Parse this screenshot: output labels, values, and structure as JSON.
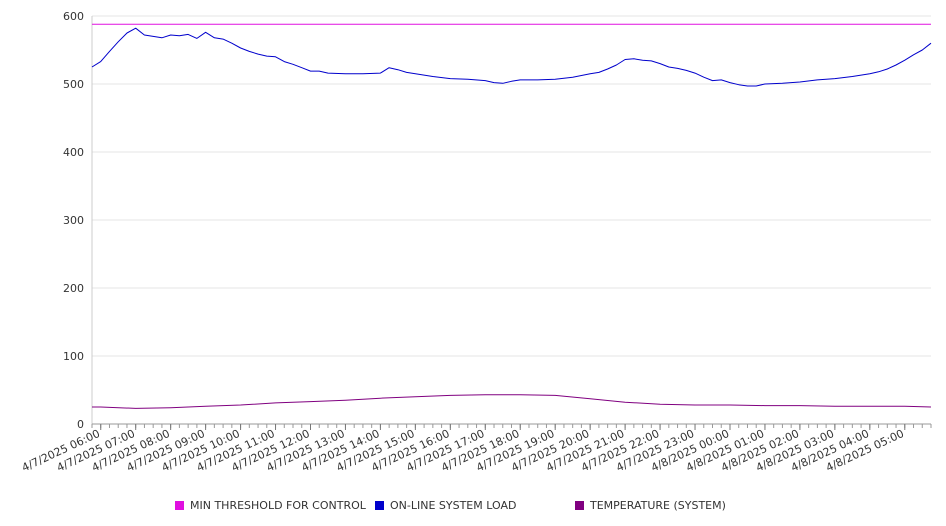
{
  "chart_data": {
    "type": "line",
    "title": "",
    "xlabel": "",
    "ylabel": "",
    "ylim": [
      0,
      600
    ],
    "yticks": [
      0,
      100,
      200,
      300,
      400,
      500,
      600
    ],
    "grid": true,
    "legend_position": "bottom",
    "x_tick_labels": [
      "4/7/2025 06:00",
      "4/7/2025 07:00",
      "4/7/2025 08:00",
      "4/7/2025 09:00",
      "4/7/2025 10:00",
      "4/7/2025 11:00",
      "4/7/2025 12:00",
      "4/7/2025 13:00",
      "4/7/2025 14:00",
      "4/7/2025 15:00",
      "4/7/2025 16:00",
      "4/7/2025 17:00",
      "4/7/2025 18:00",
      "4/7/2025 19:00",
      "4/7/2025 20:00",
      "4/7/2025 21:00",
      "4/7/2025 22:00",
      "4/7/2025 23:00",
      "4/8/2025 00:00",
      "4/8/2025 01:00",
      "4/8/2025 02:00",
      "4/8/2025 03:00",
      "4/8/2025 04:00",
      "4/8/2025 05:00"
    ],
    "x_range": [
      "4/7/2025 05:45",
      "4/8/2025 05:45"
    ],
    "series": [
      {
        "name": "MIN THRESHOLD FOR CONTROL",
        "color": "#e010e0",
        "points": [
          [
            "4/7/2025 05:45",
            588
          ],
          [
            "4/8/2025 05:45",
            588
          ]
        ]
      },
      {
        "name": "ON-LINE SYSTEM LOAD",
        "color": "#0000cc",
        "points": [
          [
            "4/7/2025 05:45",
            525
          ],
          [
            "4/7/2025 06:00",
            533
          ],
          [
            "4/7/2025 06:15",
            548
          ],
          [
            "4/7/2025 06:30",
            562
          ],
          [
            "4/7/2025 06:45",
            575
          ],
          [
            "4/7/2025 07:00",
            582
          ],
          [
            "4/7/2025 07:15",
            572
          ],
          [
            "4/7/2025 07:30",
            570
          ],
          [
            "4/7/2025 07:45",
            568
          ],
          [
            "4/7/2025 08:00",
            572
          ],
          [
            "4/7/2025 08:15",
            571
          ],
          [
            "4/7/2025 08:30",
            573
          ],
          [
            "4/7/2025 08:45",
            567
          ],
          [
            "4/7/2025 09:00",
            576
          ],
          [
            "4/7/2025 09:15",
            568
          ],
          [
            "4/7/2025 09:30",
            566
          ],
          [
            "4/7/2025 09:45",
            560
          ],
          [
            "4/7/2025 10:00",
            553
          ],
          [
            "4/7/2025 10:15",
            548
          ],
          [
            "4/7/2025 10:30",
            544
          ],
          [
            "4/7/2025 10:45",
            541
          ],
          [
            "4/7/2025 11:00",
            540
          ],
          [
            "4/7/2025 11:15",
            533
          ],
          [
            "4/7/2025 11:30",
            529
          ],
          [
            "4/7/2025 11:45",
            524
          ],
          [
            "4/7/2025 12:00",
            519
          ],
          [
            "4/7/2025 12:15",
            519
          ],
          [
            "4/7/2025 12:30",
            516
          ],
          [
            "4/7/2025 13:00",
            515
          ],
          [
            "4/7/2025 13:30",
            515
          ],
          [
            "4/7/2025 14:00",
            516
          ],
          [
            "4/7/2025 14:15",
            524
          ],
          [
            "4/7/2025 14:30",
            521
          ],
          [
            "4/7/2025 14:45",
            517
          ],
          [
            "4/7/2025 15:00",
            515
          ],
          [
            "4/7/2025 15:30",
            511
          ],
          [
            "4/7/2025 16:00",
            508
          ],
          [
            "4/7/2025 16:30",
            507
          ],
          [
            "4/7/2025 17:00",
            505
          ],
          [
            "4/7/2025 17:15",
            502
          ],
          [
            "4/7/2025 17:30",
            501
          ],
          [
            "4/7/2025 17:45",
            504
          ],
          [
            "4/7/2025 18:00",
            506
          ],
          [
            "4/7/2025 18:30",
            506
          ],
          [
            "4/7/2025 19:00",
            507
          ],
          [
            "4/7/2025 19:30",
            510
          ],
          [
            "4/7/2025 20:00",
            515
          ],
          [
            "4/7/2025 20:15",
            517
          ],
          [
            "4/7/2025 20:30",
            522
          ],
          [
            "4/7/2025 20:45",
            528
          ],
          [
            "4/7/2025 21:00",
            536
          ],
          [
            "4/7/2025 21:15",
            537
          ],
          [
            "4/7/2025 21:30",
            535
          ],
          [
            "4/7/2025 21:45",
            534
          ],
          [
            "4/7/2025 22:00",
            530
          ],
          [
            "4/7/2025 22:15",
            525
          ],
          [
            "4/7/2025 22:30",
            523
          ],
          [
            "4/7/2025 22:45",
            520
          ],
          [
            "4/7/2025 23:00",
            516
          ],
          [
            "4/7/2025 23:15",
            510
          ],
          [
            "4/7/2025 23:30",
            505
          ],
          [
            "4/7/2025 23:45",
            506
          ],
          [
            "4/8/2025 00:00",
            502
          ],
          [
            "4/8/2025 00:15",
            499
          ],
          [
            "4/8/2025 00:30",
            497
          ],
          [
            "4/8/2025 00:45",
            497
          ],
          [
            "4/8/2025 01:00",
            500
          ],
          [
            "4/8/2025 01:30",
            501
          ],
          [
            "4/8/2025 02:00",
            503
          ],
          [
            "4/8/2025 02:30",
            506
          ],
          [
            "4/8/2025 03:00",
            508
          ],
          [
            "4/8/2025 03:30",
            511
          ],
          [
            "4/8/2025 04:00",
            515
          ],
          [
            "4/8/2025 04:15",
            518
          ],
          [
            "4/8/2025 04:30",
            522
          ],
          [
            "4/8/2025 04:45",
            528
          ],
          [
            "4/8/2025 05:00",
            535
          ],
          [
            "4/8/2025 05:15",
            543
          ],
          [
            "4/8/2025 05:30",
            550
          ],
          [
            "4/8/2025 05:45",
            560
          ]
        ]
      },
      {
        "name": "TEMPERATURE (SYSTEM)",
        "color": "#800080",
        "points": [
          [
            "4/7/2025 05:45",
            25
          ],
          [
            "4/7/2025 06:00",
            25
          ],
          [
            "4/7/2025 07:00",
            23
          ],
          [
            "4/7/2025 08:00",
            24
          ],
          [
            "4/7/2025 09:00",
            26
          ],
          [
            "4/7/2025 10:00",
            28
          ],
          [
            "4/7/2025 11:00",
            31
          ],
          [
            "4/7/2025 12:00",
            33
          ],
          [
            "4/7/2025 13:00",
            35
          ],
          [
            "4/7/2025 14:00",
            38
          ],
          [
            "4/7/2025 15:00",
            40
          ],
          [
            "4/7/2025 16:00",
            42
          ],
          [
            "4/7/2025 17:00",
            43
          ],
          [
            "4/7/2025 18:00",
            43
          ],
          [
            "4/7/2025 19:00",
            42
          ],
          [
            "4/7/2025 20:00",
            37
          ],
          [
            "4/7/2025 21:00",
            32
          ],
          [
            "4/7/2025 22:00",
            29
          ],
          [
            "4/7/2025 23:00",
            28
          ],
          [
            "4/8/2025 00:00",
            28
          ],
          [
            "4/8/2025 01:00",
            27
          ],
          [
            "4/8/2025 02:00",
            27
          ],
          [
            "4/8/2025 03:00",
            26
          ],
          [
            "4/8/2025 04:00",
            26
          ],
          [
            "4/8/2025 05:00",
            26
          ],
          [
            "4/8/2025 05:45",
            25
          ]
        ]
      }
    ]
  }
}
